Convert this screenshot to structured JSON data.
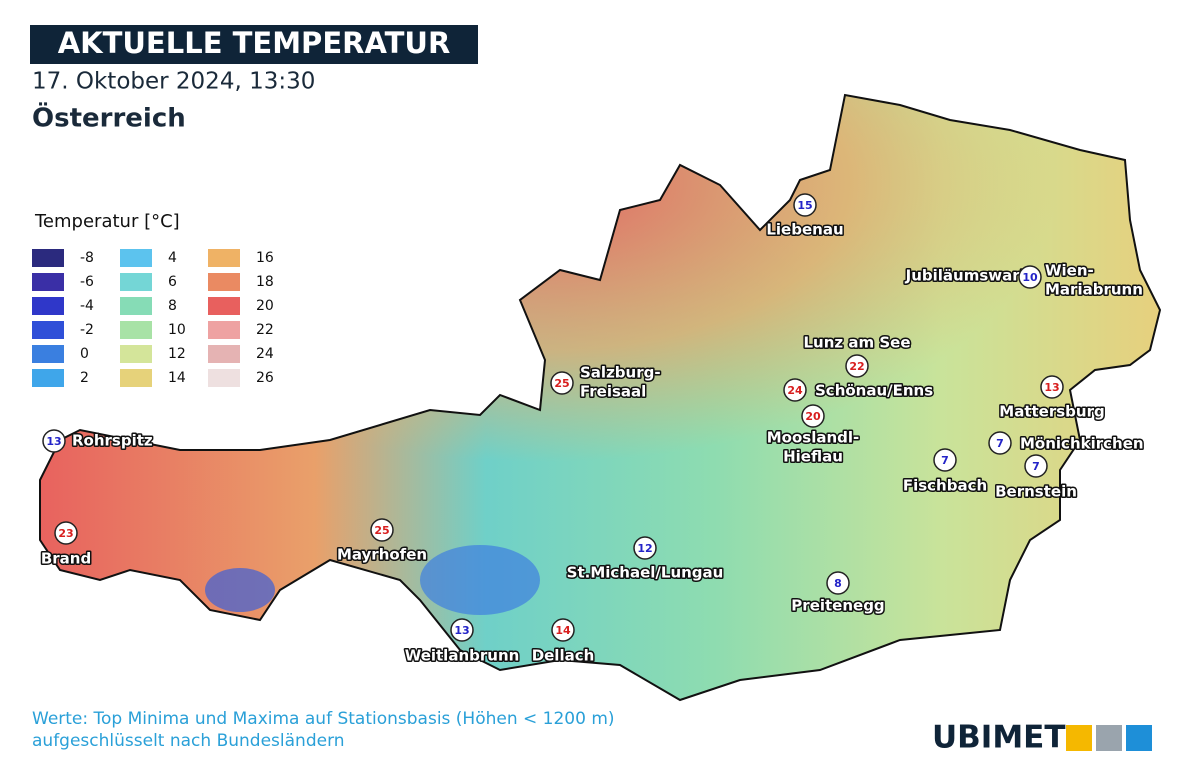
{
  "header": {
    "title": "AKTUELLE TEMPERATUR",
    "date": "17. Oktober 2024, 13:30",
    "region": "Österreich"
  },
  "legend": {
    "title": "Temperatur [°C]",
    "entries": [
      {
        "value": -8,
        "color": "#2b2a7e"
      },
      {
        "value": -6,
        "color": "#3a2fa6"
      },
      {
        "value": -4,
        "color": "#2f37c9"
      },
      {
        "value": -2,
        "color": "#2f4fd8"
      },
      {
        "value": 0,
        "color": "#3a7fe0"
      },
      {
        "value": 2,
        "color": "#3fa6ea"
      },
      {
        "value": 4,
        "color": "#5cc3ee"
      },
      {
        "value": 6,
        "color": "#74d6d6"
      },
      {
        "value": 8,
        "color": "#86dcb6"
      },
      {
        "value": 10,
        "color": "#a8e2a6"
      },
      {
        "value": 12,
        "color": "#d4e59a"
      },
      {
        "value": 14,
        "color": "#e6d27a"
      },
      {
        "value": 16,
        "color": "#efb265"
      },
      {
        "value": 18,
        "color": "#ea8a62"
      },
      {
        "value": 20,
        "color": "#e8605e"
      },
      {
        "value": 22,
        "color": "#eea2a2"
      },
      {
        "value": 24,
        "color": "#e5b3b3"
      },
      {
        "value": 26,
        "color": "#eee0e0"
      }
    ]
  },
  "stations": [
    {
      "lines": [
        "Liebenau"
      ],
      "value": 15,
      "color": "#2323c8"
    },
    {
      "lines": [
        "Jubiläumswarte"
      ]
    },
    {
      "lines": [
        "Wien-",
        "Mariabrunn"
      ],
      "value": 10,
      "color": "#2323c8"
    },
    {
      "lines": [
        "Lunz am See"
      ],
      "value": 22,
      "color": "#d81e1e"
    },
    {
      "lines": [
        "Schönau/Enns"
      ],
      "value": 24,
      "color": "#d81e1e"
    },
    {
      "lines": [
        "Mooslandl-",
        "Hieflau"
      ],
      "value": 20,
      "color": "#d81e1e"
    },
    {
      "lines": [
        "Salzburg-",
        "Freisaal"
      ],
      "value": 25,
      "color": "#d81e1e"
    },
    {
      "lines": [
        "Mattersburg"
      ],
      "value": 13,
      "color": "#d81e1e"
    },
    {
      "lines": [
        "Mönichkirchen"
      ],
      "value": 7,
      "color": "#2323c8"
    },
    {
      "lines": [
        "Bernstein"
      ],
      "value": 7,
      "color": "#2323c8"
    },
    {
      "lines": [
        "Fischbach"
      ],
      "value": 7,
      "color": "#2323c8"
    },
    {
      "lines": [
        "Rohrspitz"
      ],
      "value": 13,
      "color": "#2323c8"
    },
    {
      "lines": [
        "Brand"
      ],
      "value": 23,
      "color": "#d81e1e"
    },
    {
      "lines": [
        "Mayrhofen"
      ],
      "value": 25,
      "color": "#d81e1e"
    },
    {
      "lines": [
        "St.Michael/Lungau"
      ],
      "value": 12,
      "color": "#2323c8"
    },
    {
      "lines": [
        "Preitenegg"
      ],
      "value": 8,
      "color": "#2323c8"
    },
    {
      "lines": [
        "Weitlanbrunn"
      ],
      "value": 13,
      "color": "#2323c8"
    },
    {
      "lines": [
        "Dellach"
      ],
      "value": 14,
      "color": "#d81e1e"
    }
  ],
  "footer": {
    "note": [
      "Werte: Top Minima und Maxima auf Stationsbasis (Höhen < 1200 m)",
      "aufgeschlüsselt nach Bundesländern"
    ],
    "logo": "UBIMET"
  }
}
